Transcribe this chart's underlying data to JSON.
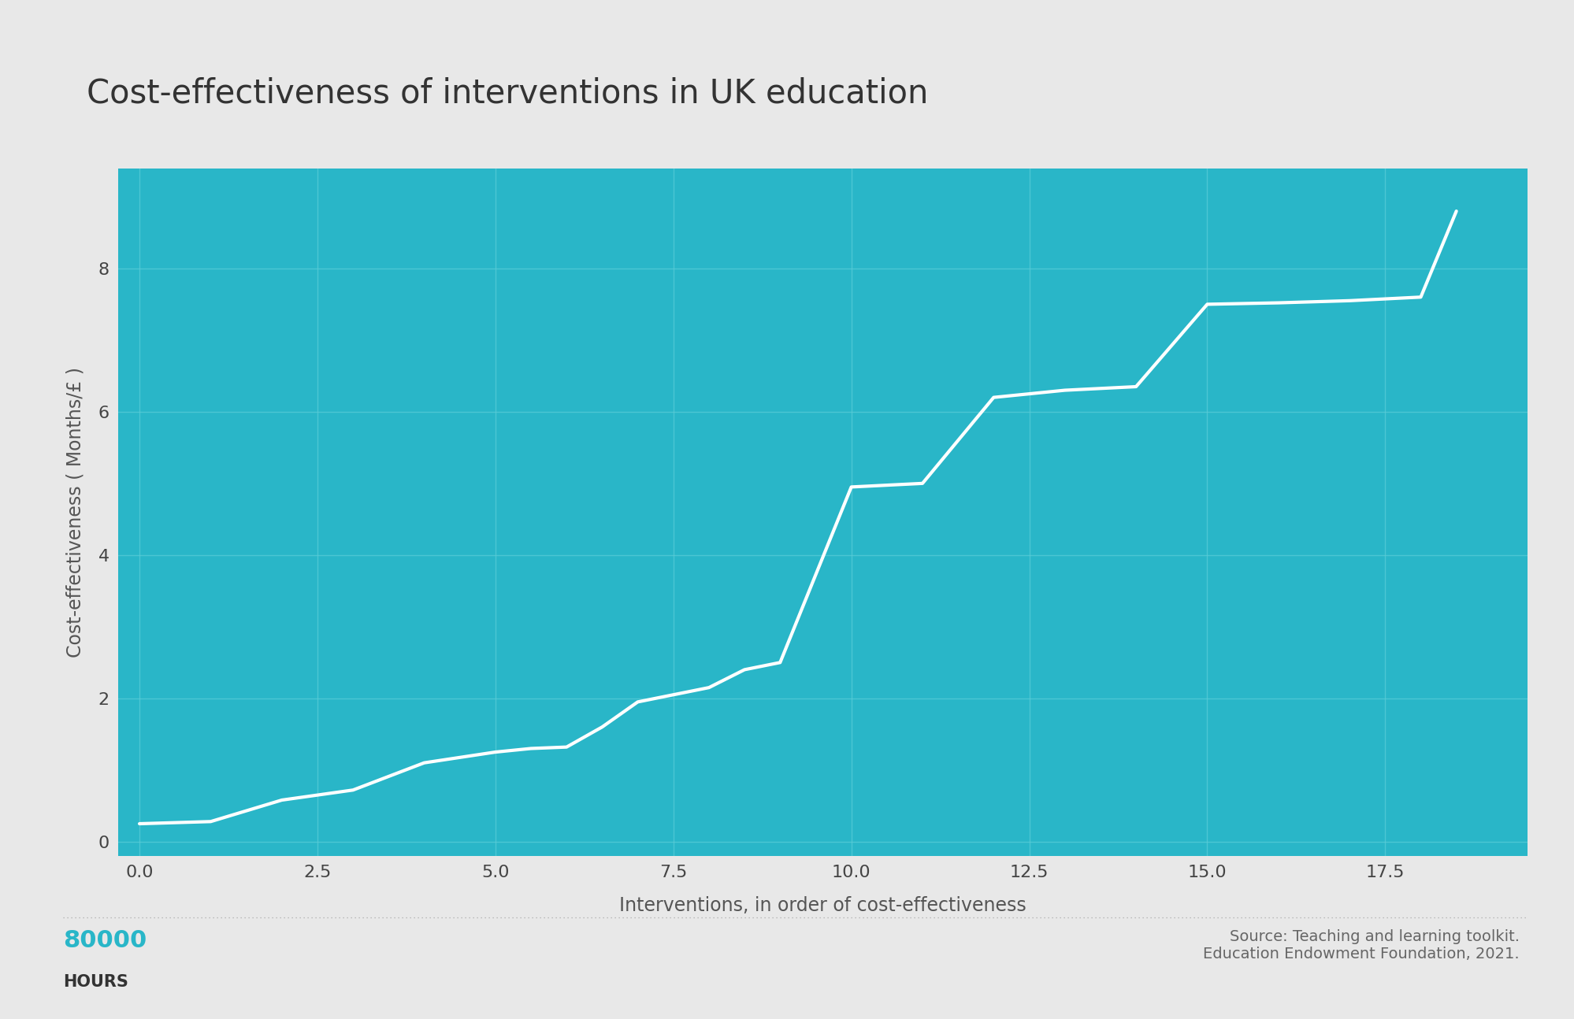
{
  "title": "Cost-effectiveness of interventions in UK education",
  "xlabel": "Interventions, in order of cost-effectiveness",
  "ylabel": "Cost-effectiveness ( Months/£ )",
  "background_color": "#e8e8e8",
  "plot_bg_color": "#29b6c8",
  "grid_color": "#5ccdd8",
  "line_color": "#ffffff",
  "title_color": "#333333",
  "axis_label_color": "#555555",
  "tick_label_color": "#444444",
  "source_text": "Source: Teaching and learning toolkit.\nEducation Endowment Foundation, 2021.",
  "logo_text_80000": "80000",
  "logo_text_hours": "HOURS",
  "logo_color": "#29b6c8",
  "x_data": [
    0,
    1,
    2,
    3,
    4,
    5,
    5.5,
    6,
    6.5,
    7,
    7.5,
    8,
    8.5,
    9,
    10,
    11,
    12,
    12.5,
    13,
    14,
    15,
    16,
    17,
    18,
    18.5
  ],
  "y_data": [
    0.25,
    0.28,
    0.58,
    0.72,
    1.1,
    1.25,
    1.3,
    1.32,
    1.6,
    1.95,
    2.05,
    2.15,
    2.4,
    2.5,
    4.95,
    5.0,
    6.2,
    6.25,
    6.3,
    6.35,
    7.5,
    7.52,
    7.55,
    7.6,
    8.8
  ],
  "xlim": [
    -0.3,
    19.5
  ],
  "ylim": [
    -0.2,
    9.4
  ],
  "xticks": [
    0.0,
    2.5,
    5.0,
    7.5,
    10.0,
    12.5,
    15.0,
    17.5
  ],
  "yticks": [
    0,
    2,
    4,
    6,
    8
  ],
  "line_width": 3.0,
  "title_fontsize": 30,
  "axis_label_fontsize": 17,
  "tick_fontsize": 16,
  "footer_dot_color": "#aaaaaa",
  "logo_80000_fontsize": 22,
  "logo_hours_fontsize": 15,
  "source_fontsize": 14
}
